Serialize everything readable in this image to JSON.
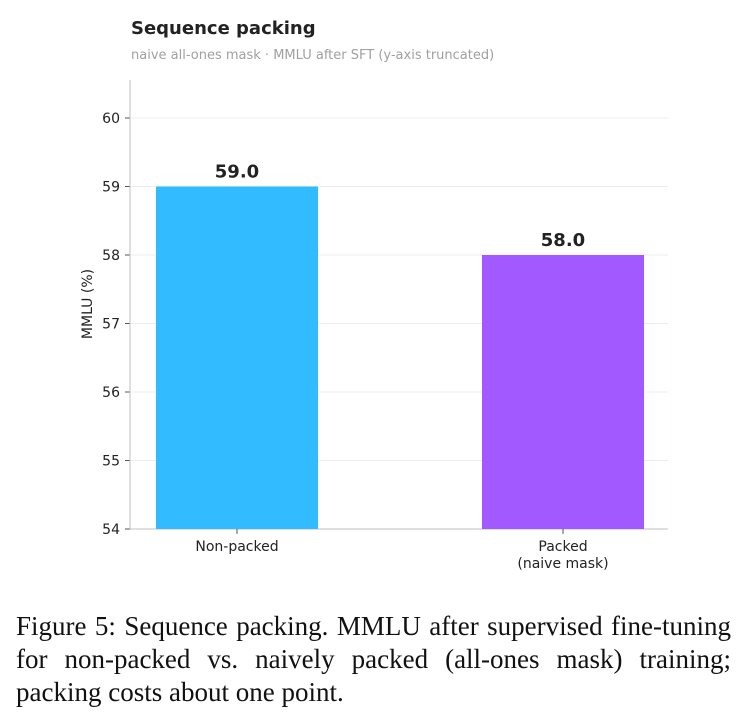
{
  "chart_data": {
    "type": "bar",
    "title": "Sequence packing",
    "subtitle": "naive all-ones mask · MMLU after SFT  (y-axis truncated)",
    "ylabel": "MMLU (%)",
    "xlabel": "",
    "categories": [
      [
        "Non-packed"
      ],
      [
        "Packed",
        "(naive mask)"
      ]
    ],
    "values": [
      59.0,
      58.0
    ],
    "value_labels": [
      "59.0",
      "58.0"
    ],
    "colors": [
      "#33bbff",
      "#a259ff"
    ],
    "ylim": [
      54,
      60.5
    ],
    "yticks": [
      54,
      55,
      56,
      57,
      58,
      59,
      60
    ],
    "grid": true,
    "legend": "none"
  },
  "caption": "Figure 5: Sequence packing. MMLU after supervised fine-tuning for non-packed vs. naively packed (all-ones mask) training; packing costs about one point."
}
